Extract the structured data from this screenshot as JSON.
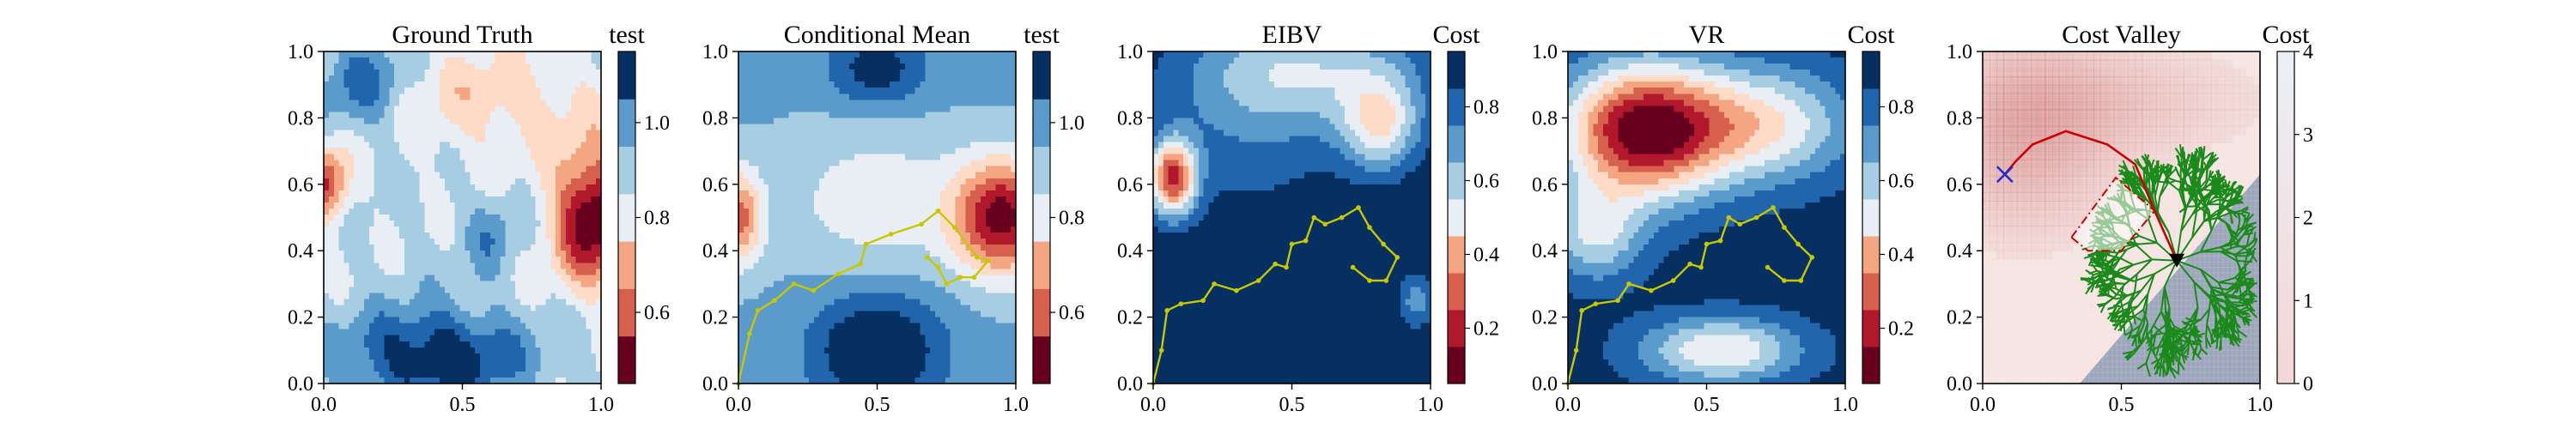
{
  "figure": {
    "layout": "1x5 contour panels with vertical colorbars",
    "dominant_colormap": "RdBu (red = low, blue = high)"
  },
  "chart_data": [
    {
      "type": "heatmap",
      "title": "Ground Truth",
      "colorbar_label": "test",
      "colorbar_ticks": [
        "0.6",
        "0.8",
        "1.0"
      ],
      "colorbar_levels": [
        0.45,
        0.55,
        0.65,
        0.75,
        0.85,
        0.95,
        1.05,
        1.15
      ],
      "xlim": [
        0,
        1
      ],
      "ylim": [
        0,
        1
      ],
      "xticks": [
        "0.0",
        "0.5",
        "1.0"
      ],
      "yticks": [
        "0.0",
        "0.2",
        "0.4",
        "0.6",
        "0.8",
        "1.0"
      ],
      "field_features": [
        {
          "kind": "low",
          "x": 0.95,
          "y": 0.5,
          "value": 0.45
        },
        {
          "kind": "low",
          "x": 0.0,
          "y": 0.6,
          "value": 0.55
        },
        {
          "kind": "high",
          "x": 0.35,
          "y": 0.1,
          "value": 1.15
        },
        {
          "kind": "high",
          "x": 0.15,
          "y": 0.9,
          "value": 1.0
        }
      ]
    },
    {
      "type": "heatmap",
      "title": "Conditional Mean",
      "colorbar_label": "test",
      "colorbar_ticks": [
        "0.6",
        "0.8",
        "1.0"
      ],
      "colorbar_levels": [
        0.45,
        0.55,
        0.65,
        0.75,
        0.85,
        0.95,
        1.05,
        1.15
      ],
      "xlim": [
        0,
        1
      ],
      "ylim": [
        0,
        1
      ],
      "xticks": [
        "0.0",
        "0.5",
        "1.0"
      ],
      "yticks": [
        "0.0",
        "0.2",
        "0.4",
        "0.6",
        "0.8",
        "1.0"
      ],
      "path_color": "#c8c800",
      "path": [
        [
          0.0,
          0.0
        ],
        [
          0.04,
          0.15
        ],
        [
          0.07,
          0.22
        ],
        [
          0.13,
          0.25
        ],
        [
          0.2,
          0.3
        ],
        [
          0.27,
          0.28
        ],
        [
          0.36,
          0.33
        ],
        [
          0.44,
          0.36
        ],
        [
          0.46,
          0.42
        ],
        [
          0.55,
          0.45
        ],
        [
          0.66,
          0.48
        ],
        [
          0.72,
          0.52
        ],
        [
          0.78,
          0.47
        ],
        [
          0.86,
          0.38
        ],
        [
          0.9,
          0.37
        ],
        [
          0.85,
          0.32
        ],
        [
          0.8,
          0.32
        ],
        [
          0.75,
          0.3
        ],
        [
          0.72,
          0.35
        ],
        [
          0.68,
          0.38
        ]
      ]
    },
    {
      "type": "heatmap",
      "title": "EIBV",
      "colorbar_label": "Cost",
      "colorbar_ticks": [
        "0.2",
        "0.4",
        "0.6",
        "0.8"
      ],
      "colorbar_levels": [
        0.05,
        0.15,
        0.25,
        0.35,
        0.45,
        0.55,
        0.65,
        0.75,
        0.85,
        0.95
      ],
      "xlim": [
        0,
        1
      ],
      "ylim": [
        0,
        1
      ],
      "xticks": [
        "0.0",
        "0.5",
        "1.0"
      ],
      "yticks": [
        "0.0",
        "0.2",
        "0.4",
        "0.6",
        "0.8",
        "1.0"
      ],
      "path_color": "#c8c800",
      "path": [
        [
          0.0,
          0.0
        ],
        [
          0.03,
          0.1
        ],
        [
          0.05,
          0.22
        ],
        [
          0.1,
          0.24
        ],
        [
          0.18,
          0.25
        ],
        [
          0.22,
          0.3
        ],
        [
          0.3,
          0.28
        ],
        [
          0.38,
          0.31
        ],
        [
          0.44,
          0.36
        ],
        [
          0.48,
          0.35
        ],
        [
          0.5,
          0.42
        ],
        [
          0.55,
          0.43
        ],
        [
          0.58,
          0.5
        ],
        [
          0.62,
          0.48
        ],
        [
          0.68,
          0.5
        ],
        [
          0.74,
          0.53
        ],
        [
          0.78,
          0.47
        ],
        [
          0.83,
          0.42
        ],
        [
          0.88,
          0.38
        ],
        [
          0.84,
          0.31
        ],
        [
          0.78,
          0.31
        ],
        [
          0.72,
          0.35
        ]
      ]
    },
    {
      "type": "heatmap",
      "title": "VR",
      "colorbar_label": "Cost",
      "colorbar_ticks": [
        "0.2",
        "0.4",
        "0.6",
        "0.8"
      ],
      "colorbar_levels": [
        0.05,
        0.15,
        0.25,
        0.35,
        0.45,
        0.55,
        0.65,
        0.75,
        0.85,
        0.95
      ],
      "xlim": [
        0,
        1
      ],
      "ylim": [
        0,
        1
      ],
      "xticks": [
        "0.0",
        "0.5",
        "1.0"
      ],
      "yticks": [
        "0.0",
        "0.2",
        "0.4",
        "0.6",
        "0.8",
        "1.0"
      ],
      "path_color": "#c8c800",
      "path": [
        [
          0.0,
          0.0
        ],
        [
          0.03,
          0.1
        ],
        [
          0.05,
          0.22
        ],
        [
          0.1,
          0.24
        ],
        [
          0.18,
          0.25
        ],
        [
          0.22,
          0.3
        ],
        [
          0.3,
          0.28
        ],
        [
          0.38,
          0.31
        ],
        [
          0.44,
          0.36
        ],
        [
          0.48,
          0.35
        ],
        [
          0.5,
          0.42
        ],
        [
          0.55,
          0.43
        ],
        [
          0.58,
          0.5
        ],
        [
          0.62,
          0.48
        ],
        [
          0.68,
          0.5
        ],
        [
          0.74,
          0.53
        ],
        [
          0.78,
          0.47
        ],
        [
          0.83,
          0.42
        ],
        [
          0.88,
          0.38
        ],
        [
          0.84,
          0.31
        ],
        [
          0.78,
          0.31
        ],
        [
          0.72,
          0.35
        ]
      ]
    },
    {
      "type": "heatmap",
      "title": "Cost Valley",
      "colorbar_label": "Cost",
      "colorbar_ticks": [
        "0",
        "1",
        "2",
        "3",
        "4"
      ],
      "colorbar_range": [
        0,
        4
      ],
      "xlim": [
        0,
        1
      ],
      "ylim": [
        0,
        1
      ],
      "xticks": [
        "0.0",
        "0.5",
        "1.0"
      ],
      "yticks": [
        "0.0",
        "0.2",
        "0.4",
        "0.6",
        "0.8",
        "1.0"
      ],
      "tree_color": "#1a8a1a",
      "route_color": "#cc0000",
      "start_marker": {
        "x": 0.7,
        "y": 0.37,
        "symbol": "triangle-down"
      },
      "target_marker": {
        "x": 0.08,
        "y": 0.63,
        "symbol": "x"
      },
      "obstacle_polygon": [
        [
          0.32,
          0.44
        ],
        [
          0.48,
          0.62
        ],
        [
          0.62,
          0.52
        ],
        [
          0.5,
          0.4
        ],
        [
          0.38,
          0.4
        ]
      ]
    }
  ]
}
